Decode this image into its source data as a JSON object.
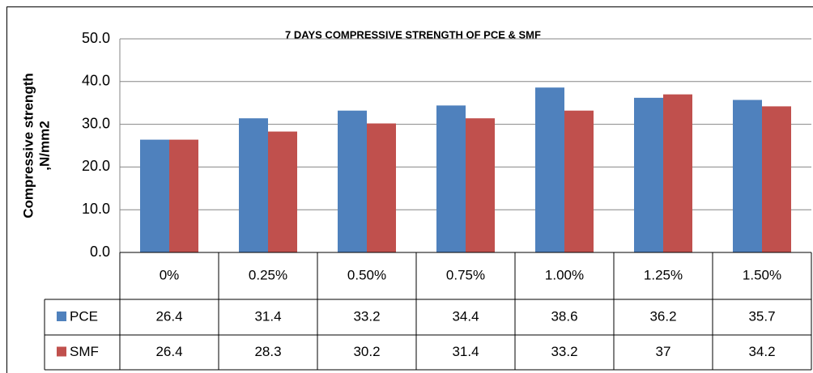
{
  "chart_data": {
    "type": "bar",
    "title": "7  DAYS COMPRESSIVE STRENGTH OF PCE & SMF",
    "ylabel": [
      "Compressive strength",
      ",N/mm2"
    ],
    "categories": [
      "0%",
      "0.25%",
      "0.50%",
      "0.75%",
      "1.00%",
      "1.25%",
      "1.50%"
    ],
    "series": [
      {
        "name": "PCE",
        "color": "#4f81bd",
        "values": [
          26.4,
          31.4,
          33.2,
          34.4,
          38.6,
          36.2,
          35.7
        ]
      },
      {
        "name": "SMF",
        "color": "#c0504d",
        "values": [
          26.4,
          28.3,
          30.2,
          31.4,
          33.2,
          37,
          34.2
        ]
      }
    ],
    "ylim": [
      0,
      50
    ],
    "yticks": [
      {
        "value": 0,
        "label": "0.0"
      },
      {
        "value": 10,
        "label": "10.0"
      },
      {
        "value": 20,
        "label": "20.0"
      },
      {
        "value": 30,
        "label": "30.0"
      },
      {
        "value": 40,
        "label": "40.0"
      },
      {
        "value": 50,
        "label": "50.0"
      }
    ],
    "grid": true
  }
}
